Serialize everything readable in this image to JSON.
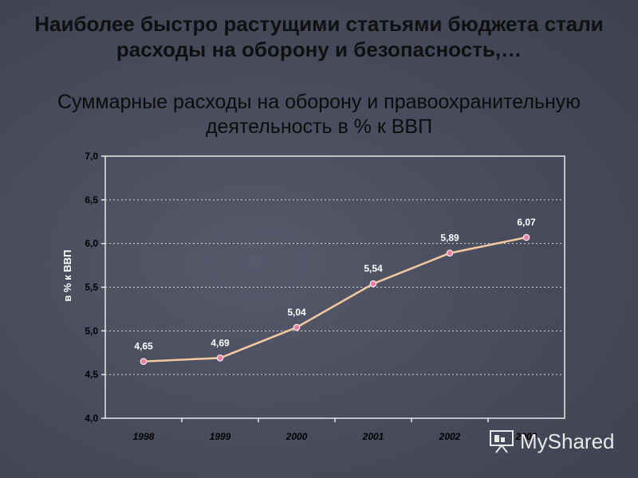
{
  "slide": {
    "title": "Наиболее быстро растущими статьями бюджета стали расходы на оборону и безопасность,…",
    "watermark": "MyShared"
  },
  "chart_data": {
    "type": "line",
    "title": "Суммарные расходы на оборону и правоохранительную деятельность в % к ВВП",
    "xlabel": "",
    "ylabel": "в % к ВВП",
    "categories": [
      "1998",
      "1999",
      "2000",
      "2001",
      "2002",
      "2003"
    ],
    "series": [
      {
        "values": [
          4.65,
          4.69,
          5.04,
          5.54,
          5.89,
          6.07
        ],
        "labels": [
          "4,65",
          "4,69",
          "5,04",
          "5,54",
          "5,89",
          "6,07"
        ]
      }
    ],
    "ylim": [
      4.0,
      7.0
    ],
    "yticks": [
      4.0,
      4.5,
      5.0,
      5.5,
      6.0,
      6.5,
      7.0
    ],
    "ytick_labels": [
      "4,0",
      "4,5",
      "5,0",
      "5,5",
      "6,0",
      "6,5",
      "7,0"
    ],
    "grid": true,
    "colors": {
      "line": "#f4c9a0",
      "marker": "#f07fa0",
      "plot_border": "#e8e8e8",
      "grid": "#d8d8d8",
      "text": "#ffffff",
      "axis_text": "#000000"
    }
  }
}
